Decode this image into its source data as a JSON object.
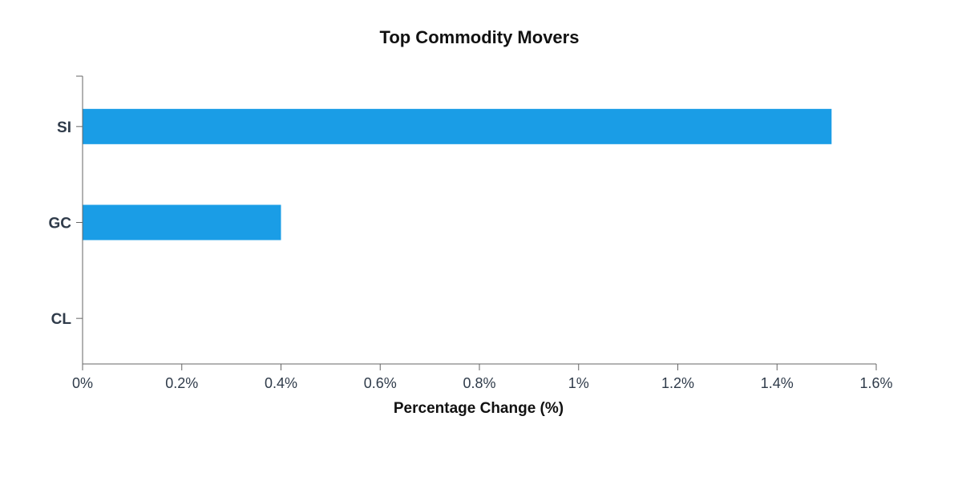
{
  "chart_data": {
    "type": "bar",
    "orientation": "horizontal",
    "title": "Top Commodity Movers",
    "xlabel": "Percentage Change (%)",
    "ylabel": "",
    "categories": [
      "SI",
      "GC",
      "CL"
    ],
    "values": [
      1.51,
      0.4,
      0.0
    ],
    "xlim": [
      0,
      1.6
    ],
    "x_ticks": [
      0,
      0.2,
      0.4,
      0.6,
      0.8,
      1,
      1.2,
      1.4,
      1.6
    ],
    "x_tick_labels": [
      "0%",
      "0.2%",
      "0.4%",
      "0.6%",
      "0.8%",
      "1%",
      "1.2%",
      "1.4%",
      "1.6%"
    ],
    "bar_color": "#1a9de6",
    "grid": false,
    "legend": "none"
  }
}
